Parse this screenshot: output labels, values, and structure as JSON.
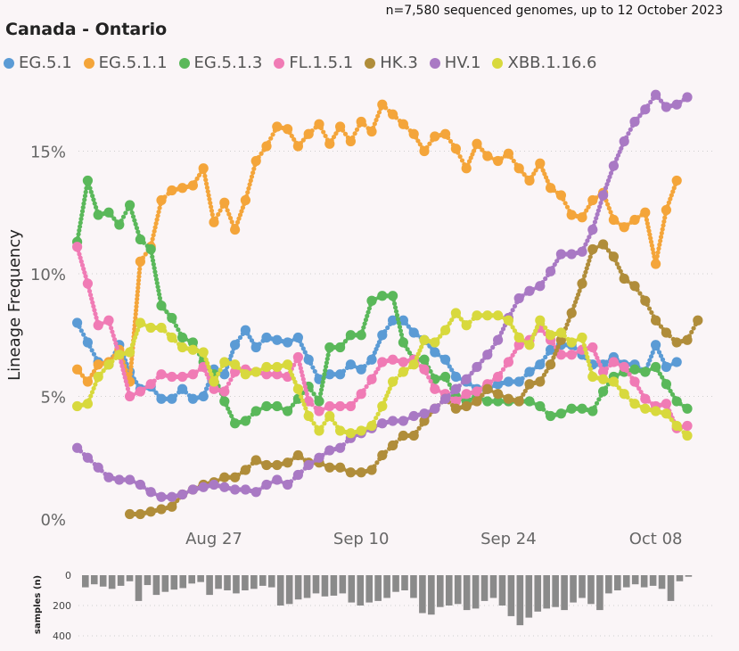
{
  "header": {
    "subtitle": "n=7,580 sequenced genomes, up to 12 October 2023",
    "title": "Canada - Ontario"
  },
  "chart_data": [
    {
      "type": "line",
      "title": "Canada - Ontario",
      "ylabel": "Lineage Frequency",
      "xlabel": "",
      "x_range_days_from_aug27": [
        -15,
        45
      ],
      "ylim": [
        0,
        17.5
      ],
      "y_ticks": [
        0,
        5,
        10,
        15
      ],
      "y_tick_labels": [
        "0%",
        "5%",
        "10%",
        "15%"
      ],
      "x_ticks": [
        0,
        14,
        28,
        42
      ],
      "x_tick_labels": [
        "Aug 27",
        "Sep 10",
        "Sep 24",
        "Oct 08"
      ],
      "series": [
        {
          "name": "EG.5.1",
          "color": "#5b9bd5",
          "x0": -13,
          "values": [
            8.0,
            7.2,
            6.4,
            6.3,
            7.1,
            6.0,
            5.3,
            5.4,
            4.9,
            4.9,
            5.3,
            4.9,
            5.0,
            6.1,
            5.9,
            7.1,
            7.7,
            7.0,
            7.4,
            7.3,
            7.2,
            7.4,
            6.5,
            5.7,
            5.9,
            5.9,
            6.3,
            6.1,
            6.5,
            7.5,
            8.1,
            8.1,
            7.6,
            7.3,
            6.8,
            6.5,
            5.8,
            5.6,
            5.3,
            5.3,
            5.5,
            5.6,
            5.6,
            6.0,
            6.3,
            6.9,
            7.1,
            7.1,
            6.7,
            6.3,
            6.3,
            6.6,
            6.3,
            6.3,
            6.0,
            7.1,
            6.2,
            6.4
          ]
        },
        {
          "name": "EG.5.1.1",
          "color": "#f4a53a",
          "x0": -13,
          "values": [
            6.1,
            5.6,
            6.3,
            6.4,
            6.9,
            5.6,
            10.5,
            11.1,
            13.0,
            13.4,
            13.5,
            13.6,
            14.3,
            12.1,
            12.9,
            11.8,
            13.0,
            14.6,
            15.2,
            16.0,
            15.9,
            15.2,
            15.7,
            16.1,
            15.3,
            16.0,
            15.4,
            16.2,
            15.8,
            16.9,
            16.5,
            16.1,
            15.7,
            15.0,
            15.6,
            15.7,
            15.1,
            14.3,
            15.3,
            14.8,
            14.6,
            14.9,
            14.3,
            13.8,
            14.5,
            13.5,
            13.2,
            12.4,
            12.3,
            13.0,
            13.3,
            12.2,
            11.9,
            12.2,
            12.5,
            10.4,
            12.6,
            13.8
          ]
        },
        {
          "name": "EG.5.1.3",
          "color": "#5ab85a",
          "x0": -13,
          "values": [
            11.3,
            13.8,
            12.4,
            12.5,
            12.0,
            12.8,
            11.4,
            11.0,
            8.7,
            8.2,
            7.4,
            7.2,
            6.4,
            5.9,
            4.8,
            3.9,
            4.0,
            4.4,
            4.6,
            4.6,
            4.4,
            4.9,
            5.4,
            4.8,
            7.0,
            7.0,
            7.5,
            7.5,
            8.9,
            9.1,
            9.1,
            7.2,
            6.5,
            6.5,
            5.7,
            5.8,
            5.0,
            4.8,
            5.0,
            4.8,
            4.8,
            4.8,
            4.8,
            4.8,
            4.6,
            4.2,
            4.3,
            4.5,
            4.5,
            4.4,
            5.2,
            5.8,
            6.0,
            6.1,
            6.0,
            6.2,
            5.5,
            4.8,
            4.5
          ]
        },
        {
          "name": "FL.1.5.1",
          "color": "#f07bb5",
          "x0": -13,
          "values": [
            11.1,
            9.6,
            7.9,
            8.1,
            6.7,
            5.0,
            5.2,
            5.5,
            5.9,
            5.8,
            5.8,
            5.9,
            6.2,
            5.3,
            5.2,
            6.0,
            6.1,
            6.0,
            5.9,
            5.9,
            5.8,
            6.6,
            4.8,
            4.4,
            4.6,
            4.6,
            4.6,
            5.1,
            5.7,
            6.4,
            6.5,
            6.4,
            6.5,
            6.1,
            5.3,
            5.1,
            4.8,
            5.1,
            5.2,
            5.5,
            5.8,
            6.4,
            7.1,
            7.3,
            7.8,
            7.3,
            6.7,
            6.7,
            6.9,
            7.0,
            6.0,
            6.4,
            6.2,
            5.6,
            4.9,
            4.6,
            4.7,
            3.7,
            3.8
          ]
        },
        {
          "name": "HK.3",
          "color": "#b08d3a",
          "x0": -8,
          "values": [
            0.2,
            0.2,
            0.3,
            0.4,
            0.5,
            1.0,
            1.2,
            1.4,
            1.5,
            1.7,
            1.7,
            2.0,
            2.4,
            2.2,
            2.2,
            2.3,
            2.6,
            2.3,
            2.3,
            2.1,
            2.1,
            1.9,
            1.9,
            2.0,
            2.6,
            3.0,
            3.4,
            3.4,
            4.0,
            4.5,
            4.9,
            4.5,
            4.6,
            4.8,
            5.3,
            5.1,
            4.9,
            4.8,
            5.5,
            5.6,
            6.3,
            7.3,
            8.4,
            9.6,
            11.0,
            11.2,
            10.7,
            9.8,
            9.5,
            8.9,
            8.1,
            7.6,
            7.2,
            7.3,
            8.1
          ]
        },
        {
          "name": "HV.1",
          "color": "#a979c4",
          "x0": -13,
          "values": [
            2.9,
            2.5,
            2.1,
            1.7,
            1.6,
            1.6,
            1.4,
            1.1,
            0.9,
            0.9,
            1.0,
            1.2,
            1.3,
            1.4,
            1.3,
            1.2,
            1.2,
            1.1,
            1.4,
            1.6,
            1.4,
            1.8,
            2.2,
            2.5,
            2.8,
            2.9,
            3.3,
            3.5,
            3.7,
            3.9,
            4.0,
            4.0,
            4.2,
            4.3,
            4.5,
            4.9,
            5.3,
            5.7,
            6.2,
            6.7,
            7.3,
            8.2,
            9.0,
            9.3,
            9.5,
            10.1,
            10.8,
            10.8,
            10.9,
            11.8,
            13.2,
            14.4,
            15.4,
            16.2,
            16.7,
            17.3,
            16.8,
            16.9,
            17.2
          ]
        },
        {
          "name": "XBB.1.16.6",
          "color": "#d8d93d",
          "x0": -13,
          "values": [
            4.6,
            4.7,
            5.8,
            6.3,
            6.7,
            6.8,
            8.0,
            7.8,
            7.8,
            7.4,
            7.0,
            6.9,
            6.8,
            5.6,
            6.4,
            6.3,
            5.9,
            6.0,
            6.2,
            6.2,
            6.3,
            5.3,
            4.2,
            3.6,
            4.2,
            3.6,
            3.5,
            3.6,
            3.8,
            4.6,
            5.6,
            6.0,
            6.3,
            7.3,
            7.2,
            7.7,
            8.4,
            7.9,
            8.3,
            8.3,
            8.3,
            8.1,
            7.4,
            7.1,
            8.1,
            7.5,
            7.6,
            7.2,
            7.4,
            5.8,
            5.7,
            5.6,
            5.1,
            4.7,
            4.5,
            4.4,
            4.3,
            3.8,
            3.4
          ]
        }
      ]
    },
    {
      "type": "bar",
      "ylabel": "samples (n)",
      "ylim": [
        0,
        400
      ],
      "y_ticks": [
        0,
        200,
        400
      ],
      "y_tick_labels": [
        "0",
        "200",
        "400"
      ],
      "x0": -13,
      "values": [
        80,
        60,
        75,
        90,
        70,
        40,
        170,
        65,
        130,
        110,
        95,
        85,
        55,
        45,
        130,
        90,
        100,
        120,
        100,
        90,
        70,
        80,
        200,
        190,
        160,
        150,
        120,
        140,
        135,
        120,
        180,
        200,
        180,
        170,
        150,
        110,
        100,
        150,
        250,
        260,
        210,
        200,
        190,
        230,
        220,
        170,
        150,
        200,
        270,
        330,
        280,
        240,
        220,
        210,
        230,
        180,
        150,
        190,
        230,
        120,
        100,
        80,
        60,
        80,
        70,
        90,
        170,
        40,
        10
      ]
    }
  ]
}
